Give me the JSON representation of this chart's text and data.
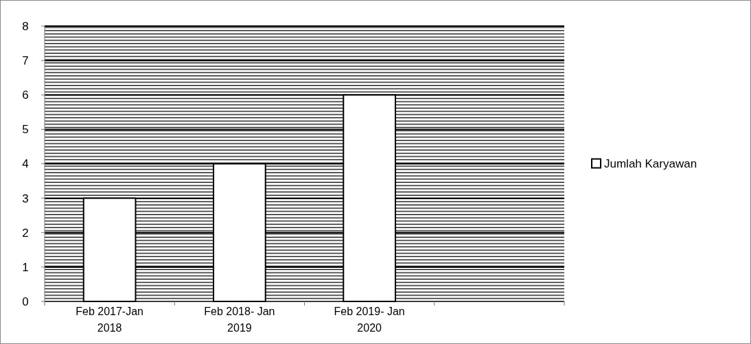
{
  "chart_data": {
    "type": "bar",
    "categories": [
      "Feb 2017-Jan 2018",
      "Feb 2018- Jan 2019",
      "Feb 2019- Jan 2020",
      null
    ],
    "series": [
      {
        "name": "Jumlah Karyawan",
        "color": "#ffffff",
        "values": [
          3,
          4,
          6,
          null
        ]
      }
    ],
    "ylim": [
      0,
      8
    ],
    "yticks": [
      0,
      1,
      2,
      3,
      4,
      5,
      6,
      7,
      8
    ],
    "grid": "y",
    "legend": "right"
  }
}
